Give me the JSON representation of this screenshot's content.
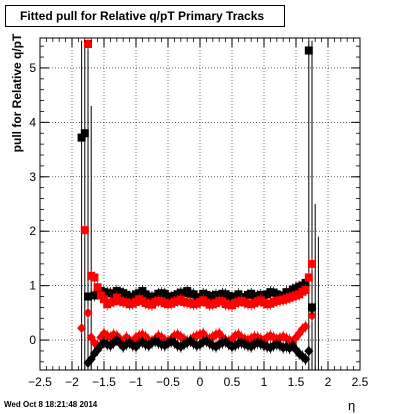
{
  "title": "Fitted pull for Relative q/pT  Primary Tracks",
  "ylabel": "pull for Relative q/pT",
  "xlabel": "η",
  "timestamp": "Wed Oct  8 18:21:48 2014",
  "chart_data": {
    "type": "scatter",
    "xlim": [
      -2.5,
      2.5
    ],
    "ylim": [
      -0.55,
      5.55
    ],
    "grid": true,
    "xticks": [
      "−2.5",
      "−2",
      "−1.5",
      "−1",
      "−0.5",
      "0",
      "0.5",
      "1",
      "1.5",
      "2",
      "2.5"
    ],
    "yticks": [
      "0",
      "1",
      "2",
      "3",
      "4",
      "5"
    ],
    "series": [
      {
        "marker": "square",
        "color": "#000000",
        "x": [
          -1.85,
          -1.8,
          -1.75,
          -1.65,
          -1.6,
          -1.55,
          -1.5,
          -1.45,
          -1.4,
          -1.35,
          -1.3,
          -1.25,
          -1.2,
          -1.15,
          -1.1,
          -1.05,
          -1.0,
          -0.95,
          -0.9,
          -0.85,
          -0.8,
          -0.75,
          -0.7,
          -0.65,
          -0.6,
          -0.55,
          -0.5,
          -0.45,
          -0.4,
          -0.35,
          -0.3,
          -0.25,
          -0.2,
          -0.15,
          -0.1,
          -0.05,
          0.0,
          0.05,
          0.1,
          0.15,
          0.2,
          0.25,
          0.3,
          0.35,
          0.4,
          0.45,
          0.5,
          0.55,
          0.6,
          0.65,
          0.7,
          0.75,
          0.8,
          0.85,
          0.9,
          0.95,
          1.0,
          1.05,
          1.1,
          1.15,
          1.2,
          1.25,
          1.3,
          1.35,
          1.4,
          1.45,
          1.5,
          1.55,
          1.6,
          1.65,
          1.7,
          1.75
        ],
        "y": [
          3.72,
          3.8,
          0.8,
          0.82,
          0.85,
          0.9,
          0.88,
          0.87,
          0.86,
          0.84,
          0.9,
          0.88,
          0.86,
          0.83,
          0.8,
          0.79,
          0.84,
          0.86,
          0.9,
          0.84,
          0.8,
          0.79,
          0.8,
          0.85,
          0.86,
          0.85,
          0.8,
          0.79,
          0.81,
          0.84,
          0.87,
          0.86,
          0.9,
          0.85,
          0.84,
          0.79,
          0.77,
          0.85,
          0.83,
          0.79,
          0.81,
          0.83,
          0.8,
          0.85,
          0.84,
          0.81,
          0.78,
          0.8,
          0.84,
          0.79,
          0.77,
          0.83,
          0.85,
          0.8,
          0.81,
          0.83,
          0.79,
          0.84,
          0.88,
          0.87,
          0.84,
          0.8,
          0.82,
          0.88,
          0.87,
          0.93,
          0.95,
          0.98,
          1.0,
          1.05,
          5.32,
          0.6
        ]
      },
      {
        "marker": "square",
        "color": "#ff0000",
        "x": [
          -1.8,
          -1.75,
          -1.7,
          -1.65,
          -1.6,
          -1.55,
          -1.5,
          -1.45,
          -1.4,
          -1.35,
          -1.3,
          -1.25,
          -1.2,
          -1.15,
          -1.1,
          -1.05,
          -1.0,
          -0.95,
          -0.9,
          -0.85,
          -0.8,
          -0.75,
          -0.7,
          -0.65,
          -0.6,
          -0.55,
          -0.5,
          -0.45,
          -0.4,
          -0.35,
          -0.3,
          -0.25,
          -0.2,
          -0.15,
          -0.1,
          -0.05,
          0.0,
          0.05,
          0.1,
          0.15,
          0.2,
          0.25,
          0.3,
          0.35,
          0.4,
          0.45,
          0.5,
          0.55,
          0.6,
          0.65,
          0.7,
          0.75,
          0.8,
          0.85,
          0.9,
          0.95,
          1.0,
          1.05,
          1.1,
          1.15,
          1.2,
          1.25,
          1.3,
          1.35,
          1.4,
          1.45,
          1.5,
          1.55,
          1.6,
          1.65,
          1.7,
          1.75
        ],
        "y": [
          2.02,
          5.44,
          1.18,
          1.15,
          0.97,
          0.82,
          0.75,
          0.66,
          0.69,
          0.71,
          0.78,
          0.72,
          0.7,
          0.69,
          0.66,
          0.67,
          0.7,
          0.75,
          0.72,
          0.68,
          0.66,
          0.65,
          0.7,
          0.72,
          0.71,
          0.68,
          0.66,
          0.67,
          0.7,
          0.72,
          0.74,
          0.7,
          0.69,
          0.68,
          0.66,
          0.67,
          0.7,
          0.73,
          0.69,
          0.65,
          0.66,
          0.68,
          0.72,
          0.71,
          0.66,
          0.65,
          0.64,
          0.68,
          0.7,
          0.72,
          0.69,
          0.67,
          0.66,
          0.68,
          0.71,
          0.73,
          0.69,
          0.66,
          0.67,
          0.7,
          0.72,
          0.73,
          0.74,
          0.76,
          0.78,
          0.8,
          0.82,
          0.84,
          0.89,
          0.92,
          1.15,
          1.4
        ]
      },
      {
        "marker": "diamond",
        "color": "#ff0000",
        "x": [
          -1.85,
          -1.75,
          -1.7,
          -1.65,
          -1.6,
          -1.55,
          -1.5,
          -1.45,
          -1.4,
          -1.35,
          -1.3,
          -1.25,
          -1.2,
          -1.15,
          -1.1,
          -1.05,
          -1.0,
          -0.95,
          -0.9,
          -0.85,
          -0.8,
          -0.75,
          -0.7,
          -0.65,
          -0.6,
          -0.55,
          -0.5,
          -0.45,
          -0.4,
          -0.35,
          -0.3,
          -0.25,
          -0.2,
          -0.15,
          -0.1,
          -0.05,
          0.0,
          0.05,
          0.1,
          0.15,
          0.2,
          0.25,
          0.3,
          0.35,
          0.4,
          0.45,
          0.5,
          0.55,
          0.6,
          0.65,
          0.7,
          0.75,
          0.8,
          0.85,
          0.9,
          0.95,
          1.0,
          1.05,
          1.1,
          1.15,
          1.2,
          1.25,
          1.3,
          1.35,
          1.4,
          1.45,
          1.5,
          1.55,
          1.6,
          1.65,
          1.75
        ],
        "y": [
          0.22,
          0.5,
          0.05,
          -0.05,
          -0.1,
          0.05,
          0.12,
          0.08,
          0.05,
          0.1,
          0.08,
          0.02,
          -0.02,
          0.05,
          0.0,
          -0.05,
          0.05,
          0.08,
          0.1,
          0.06,
          0.0,
          -0.02,
          0.02,
          0.08,
          0.05,
          0.0,
          -0.02,
          0.02,
          0.08,
          0.1,
          0.06,
          0.02,
          -0.02,
          0.0,
          0.05,
          0.08,
          0.1,
          0.12,
          0.05,
          0.02,
          0.06,
          0.1,
          0.12,
          0.05,
          0.0,
          -0.02,
          0.02,
          0.08,
          0.1,
          0.05,
          0.02,
          0.0,
          0.03,
          0.06,
          0.05,
          0.02,
          0.0,
          0.05,
          0.08,
          0.05,
          0.02,
          0.04,
          0.06,
          0.03,
          0.0,
          -0.05,
          0.05,
          0.12,
          0.2,
          0.25,
          0.45
        ]
      },
      {
        "marker": "diamond",
        "color": "#000000",
        "x": [
          -1.75,
          -1.7,
          -1.65,
          -1.6,
          -1.55,
          -1.5,
          -1.45,
          -1.4,
          -1.35,
          -1.3,
          -1.25,
          -1.2,
          -1.15,
          -1.1,
          -1.05,
          -1.0,
          -0.95,
          -0.9,
          -0.85,
          -0.8,
          -0.75,
          -0.7,
          -0.65,
          -0.6,
          -0.55,
          -0.5,
          -0.45,
          -0.4,
          -0.35,
          -0.3,
          -0.25,
          -0.2,
          -0.15,
          -0.1,
          -0.05,
          0.0,
          0.05,
          0.1,
          0.15,
          0.2,
          0.25,
          0.3,
          0.35,
          0.4,
          0.45,
          0.5,
          0.55,
          0.6,
          0.65,
          0.7,
          0.75,
          0.8,
          0.85,
          0.9,
          0.95,
          1.0,
          1.05,
          1.1,
          1.15,
          1.2,
          1.25,
          1.3,
          1.35,
          1.4,
          1.45,
          1.5,
          1.55,
          1.6,
          1.65,
          1.7,
          1.75
        ],
        "y": [
          -0.42,
          -0.35,
          -0.25,
          -0.18,
          -0.1,
          -0.05,
          -0.08,
          -0.1,
          -0.05,
          0.0,
          -0.06,
          -0.12,
          -0.08,
          -0.05,
          -0.1,
          -0.12,
          -0.06,
          -0.04,
          -0.08,
          -0.1,
          -0.05,
          -0.02,
          -0.05,
          -0.08,
          -0.1,
          -0.06,
          -0.03,
          -0.05,
          -0.1,
          -0.12,
          -0.08,
          -0.05,
          -0.02,
          -0.06,
          -0.1,
          -0.08,
          -0.03,
          -0.02,
          -0.06,
          -0.1,
          -0.12,
          -0.08,
          -0.05,
          -0.03,
          -0.08,
          -0.12,
          -0.1,
          -0.06,
          -0.05,
          -0.08,
          -0.1,
          -0.12,
          -0.08,
          -0.05,
          -0.07,
          -0.1,
          -0.12,
          -0.14,
          -0.1,
          -0.08,
          -0.1,
          -0.14,
          -0.12,
          -0.15,
          -0.1,
          -0.18,
          -0.25,
          -0.3,
          -0.35,
          -0.2,
          0.58
        ]
      }
    ],
    "verticals": [
      {
        "x": -1.85,
        "ymin": -0.55,
        "ymax": 5.5,
        "color": "#000000"
      },
      {
        "x": -1.8,
        "ymin": -0.55,
        "ymax": 5.5,
        "color": "#000000"
      },
      {
        "x": -1.75,
        "ymin": -0.55,
        "ymax": 5.5,
        "color": "#000000"
      },
      {
        "x": -1.7,
        "ymin": -0.55,
        "ymax": 4.3,
        "color": "#000000"
      },
      {
        "x": 1.7,
        "ymin": -0.55,
        "ymax": 5.5,
        "color": "#000000"
      },
      {
        "x": 1.75,
        "ymin": -0.55,
        "ymax": 5.5,
        "color": "#000000"
      },
      {
        "x": 1.8,
        "ymin": -0.55,
        "ymax": 2.5,
        "color": "#000000"
      },
      {
        "x": 1.85,
        "ymin": -0.55,
        "ymax": 1.9,
        "color": "#000000"
      }
    ]
  }
}
